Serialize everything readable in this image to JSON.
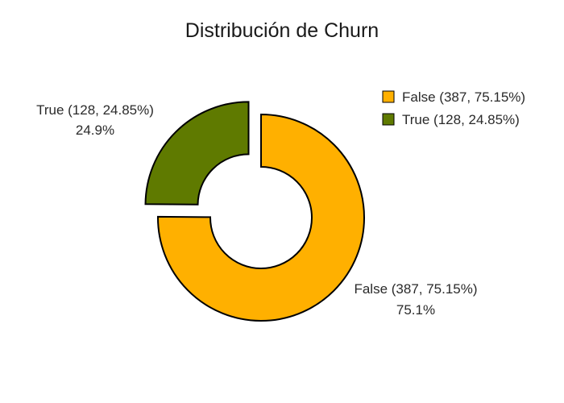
{
  "chart_data": {
    "type": "pie",
    "style": "donut",
    "title": "Distribución de Churn",
    "legend_position": "top-right",
    "slices": [
      {
        "name": "False (387, 75.15%)",
        "value": 387,
        "percent_label": "75.1%",
        "color": "#FFB000",
        "pulled": false
      },
      {
        "name": "True (128, 24.85%)",
        "value": 128,
        "percent_label": "24.9%",
        "color": "#5F7A00",
        "pulled": true
      }
    ]
  }
}
